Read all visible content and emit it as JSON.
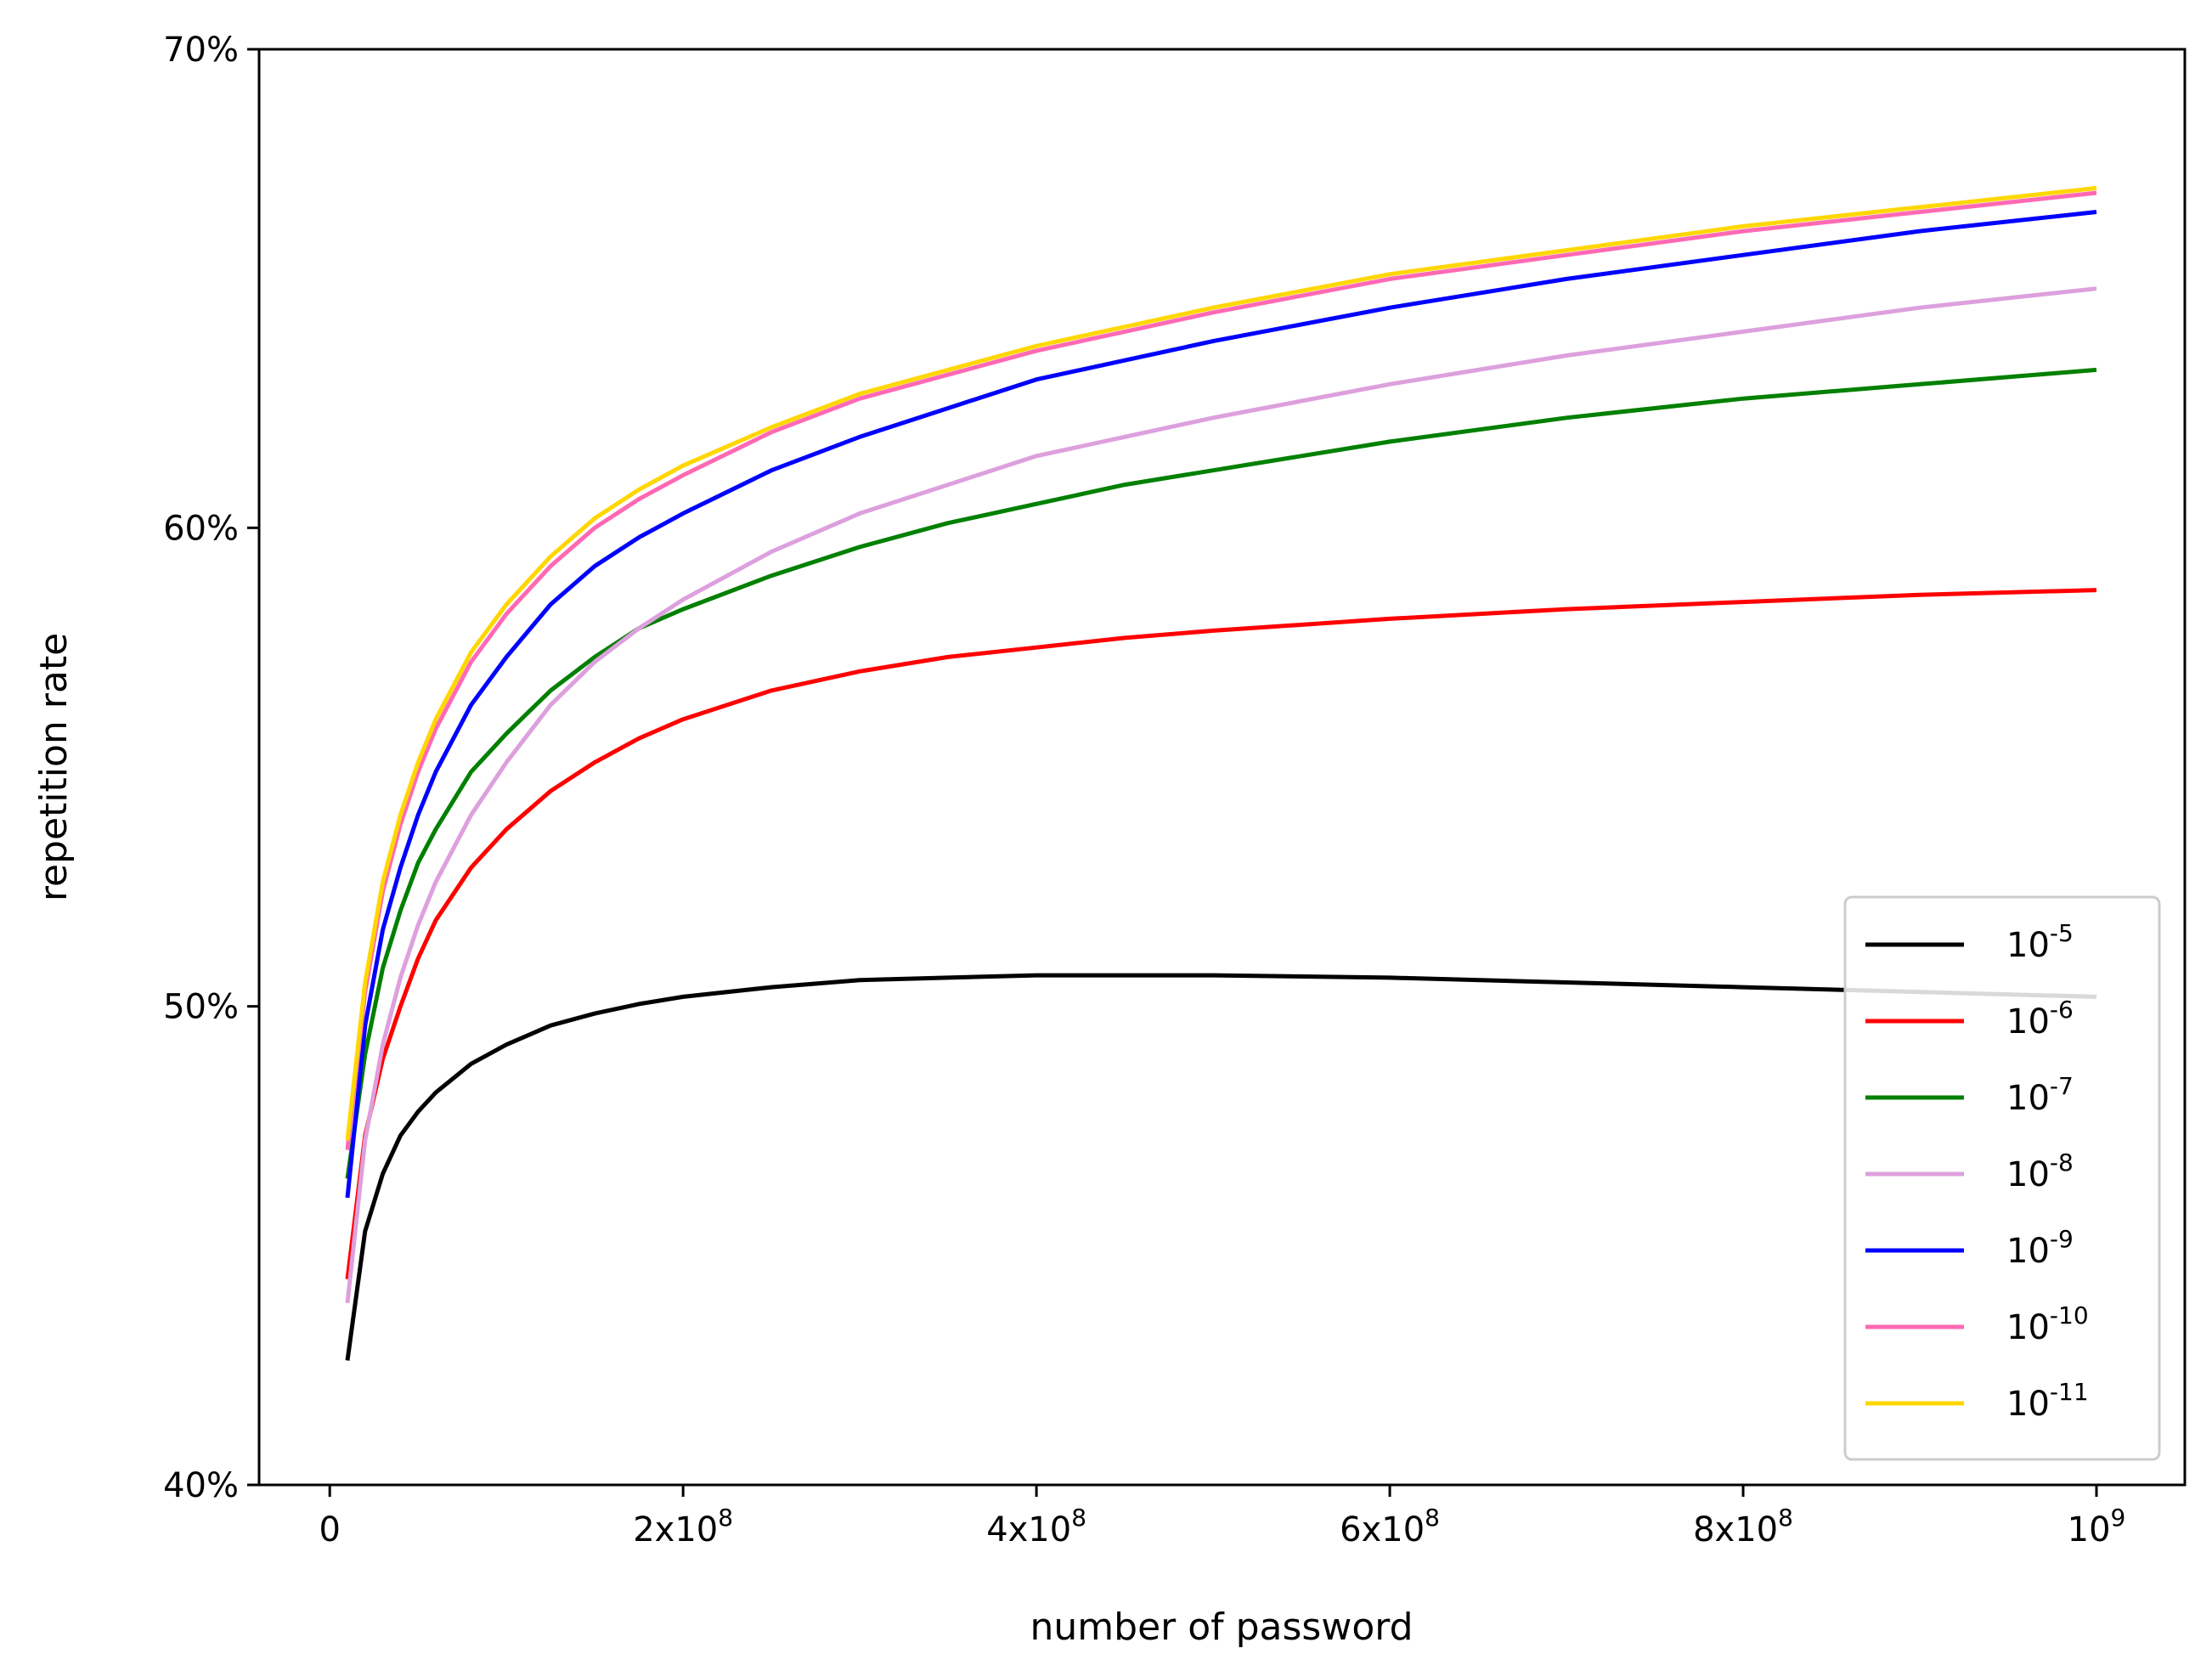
{
  "chart_data": {
    "type": "line",
    "xlabel": "number of password",
    "ylabel": "repetition rate",
    "xlim": [
      -40000000,
      1050000000
    ],
    "ylim": [
      40,
      70
    ],
    "grid": false,
    "legend_position": "bottom-right",
    "x_ticks": [
      {
        "value": 0,
        "base": "0",
        "exp": ""
      },
      {
        "value": 200000000,
        "base": "2x10",
        "exp": "8"
      },
      {
        "value": 400000000,
        "base": "4x10",
        "exp": "8"
      },
      {
        "value": 600000000,
        "base": "6x10",
        "exp": "8"
      },
      {
        "value": 800000000,
        "base": "8x10",
        "exp": "8"
      },
      {
        "value": 1000000000,
        "base": "10",
        "exp": "9"
      }
    ],
    "y_ticks": [
      {
        "value": 40,
        "label": "40%"
      },
      {
        "value": 50,
        "label": "50%"
      },
      {
        "value": 60,
        "label": "60%"
      },
      {
        "value": 70,
        "label": "70%"
      }
    ],
    "x": [
      10000000,
      20000000,
      30000000,
      40000000,
      50000000,
      60000000,
      80000000,
      100000000,
      125000000,
      150000000,
      175000000,
      200000000,
      250000000,
      300000000,
      350000000,
      400000000,
      450000000,
      500000000,
      600000000,
      700000000,
      800000000,
      900000000,
      1000000000
    ],
    "series": [
      {
        "name": "10",
        "exp": "-5",
        "color": "#000000",
        "values": [
          42.6,
          45.3,
          46.5,
          47.3,
          47.8,
          48.2,
          48.8,
          49.2,
          49.6,
          49.85,
          50.05,
          50.2,
          50.4,
          50.55,
          50.6,
          50.65,
          50.65,
          50.65,
          50.6,
          50.5,
          50.4,
          50.3,
          50.2
        ]
      },
      {
        "name": "10",
        "exp": "-6",
        "color": "#ff0000",
        "values": [
          44.3,
          47.3,
          48.9,
          50.0,
          51.0,
          51.8,
          52.9,
          53.7,
          54.5,
          55.1,
          55.6,
          56.0,
          56.6,
          57.0,
          57.3,
          57.5,
          57.7,
          57.85,
          58.1,
          58.3,
          58.45,
          58.6,
          58.7
        ]
      },
      {
        "name": "10",
        "exp": "-7",
        "color": "#008000",
        "values": [
          46.4,
          49.0,
          50.8,
          52.0,
          53.0,
          53.7,
          54.9,
          55.7,
          56.6,
          57.3,
          57.9,
          58.3,
          59.0,
          59.6,
          60.1,
          60.5,
          60.9,
          61.2,
          61.8,
          62.3,
          62.7,
          63.0,
          63.3
        ]
      },
      {
        "name": "10",
        "exp": "-8",
        "color": "#dda0dd",
        "values": [
          43.8,
          47.2,
          49.2,
          50.6,
          51.7,
          52.6,
          54.0,
          55.1,
          56.3,
          57.2,
          57.9,
          58.5,
          59.5,
          60.3,
          60.9,
          61.5,
          61.9,
          62.3,
          63.0,
          63.6,
          64.1,
          64.6,
          65.0
        ]
      },
      {
        "name": "10",
        "exp": "-9",
        "color": "#0000ff",
        "values": [
          46.0,
          49.6,
          51.6,
          52.9,
          54.0,
          54.9,
          56.3,
          57.3,
          58.4,
          59.2,
          59.8,
          60.3,
          61.2,
          61.9,
          62.5,
          63.1,
          63.5,
          63.9,
          64.6,
          65.2,
          65.7,
          66.2,
          66.6
        ]
      },
      {
        "name": "10",
        "exp": "-10",
        "color": "#ff69b4",
        "values": [
          47.0,
          50.3,
          52.4,
          53.8,
          54.9,
          55.8,
          57.2,
          58.2,
          59.2,
          60.0,
          60.6,
          61.1,
          62.0,
          62.7,
          63.2,
          63.7,
          64.1,
          64.5,
          65.2,
          65.7,
          66.2,
          66.6,
          67.0
        ]
      },
      {
        "name": "10",
        "exp": "-11",
        "color": "#ffd700",
        "values": [
          47.2,
          50.5,
          52.6,
          54.0,
          55.1,
          56.0,
          57.4,
          58.4,
          59.4,
          60.2,
          60.8,
          61.3,
          62.1,
          62.8,
          63.3,
          63.8,
          64.2,
          64.6,
          65.3,
          65.8,
          66.3,
          66.7,
          67.1
        ]
      }
    ]
  }
}
